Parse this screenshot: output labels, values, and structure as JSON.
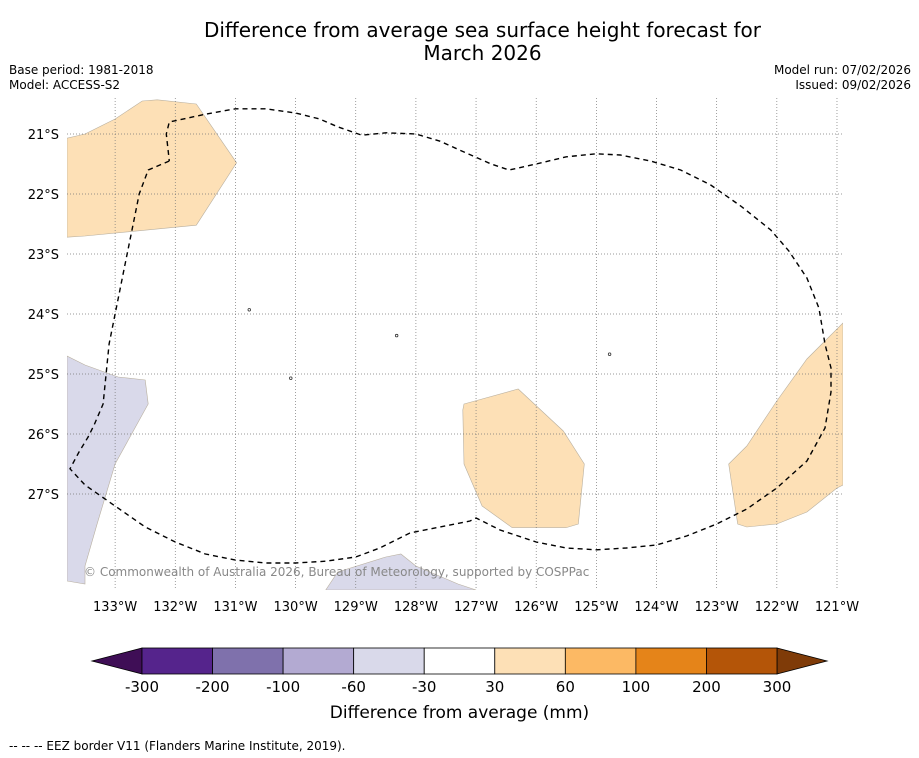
{
  "title_line1": "Difference from average sea surface height forecast for",
  "title_line2": "March 2026",
  "meta_left": {
    "base_period": "Base period: 1981-2018",
    "model": "Model: ACCESS-S2"
  },
  "meta_right": {
    "model_run": "Model run: 07/02/2026",
    "issued": "Issued: 09/02/2026"
  },
  "map": {
    "lon_range": [
      -133.8,
      -120.9
    ],
    "lat_range": [
      -28.6,
      -20.4
    ],
    "lon_ticks": [
      -133,
      -132,
      -131,
      -130,
      -129,
      -128,
      -127,
      -126,
      -125,
      -124,
      -123,
      -122,
      -121
    ],
    "lon_labels": [
      "133°W",
      "132°W",
      "131°W",
      "130°W",
      "129°W",
      "128°W",
      "127°W",
      "126°W",
      "125°W",
      "124°W",
      "123°W",
      "122°W",
      "121°W"
    ],
    "lat_ticks": [
      -21,
      -22,
      -23,
      -24,
      -25,
      -26,
      -27
    ],
    "lat_labels": [
      "21°S",
      "22°S",
      "23°S",
      "24°S",
      "25°S",
      "26°S",
      "27°S"
    ],
    "attribution": "© Commonwealth of Australia 2026, Bureau of Meteorology, supported by COSPPac",
    "regions": [
      {
        "category": "30 to 60",
        "color": "#fde0b6",
        "coords": [
          [
            -133.8,
            -21.07
          ],
          [
            -133.5,
            -21.0
          ],
          [
            -133.0,
            -20.75
          ],
          [
            -132.55,
            -20.45
          ],
          [
            -132.3,
            -20.43
          ],
          [
            -131.65,
            -20.5
          ],
          [
            -130.98,
            -21.48
          ],
          [
            -131.65,
            -22.52
          ],
          [
            -133.5,
            -22.7
          ],
          [
            -133.8,
            -22.72
          ]
        ]
      },
      {
        "category": "30 to 60",
        "color": "#fde0b6",
        "coords": [
          [
            -127.2,
            -25.5
          ],
          [
            -126.3,
            -25.25
          ],
          [
            -125.55,
            -25.95
          ],
          [
            -125.2,
            -26.5
          ],
          [
            -125.3,
            -27.5
          ],
          [
            -125.5,
            -27.56
          ],
          [
            -126.4,
            -27.56
          ],
          [
            -126.9,
            -27.2
          ],
          [
            -127.2,
            -26.5
          ],
          [
            -127.22,
            -25.6
          ]
        ]
      },
      {
        "category": "30 to 60",
        "color": "#fde0b6",
        "coords": [
          [
            -120.9,
            -24.15
          ],
          [
            -121.5,
            -24.75
          ],
          [
            -122.0,
            -25.45
          ],
          [
            -122.5,
            -26.2
          ],
          [
            -122.8,
            -26.5
          ],
          [
            -122.65,
            -27.5
          ],
          [
            -122.5,
            -27.55
          ],
          [
            -122.0,
            -27.5
          ],
          [
            -121.5,
            -27.3
          ],
          [
            -121.0,
            -26.9
          ],
          [
            -120.9,
            -26.85
          ]
        ]
      },
      {
        "category": "-60 to -30",
        "color": "#d9d9ea",
        "coords": [
          [
            -133.8,
            -24.7
          ],
          [
            -133.5,
            -24.85
          ],
          [
            -132.95,
            -25.05
          ],
          [
            -132.5,
            -25.1
          ],
          [
            -132.45,
            -25.5
          ],
          [
            -133.0,
            -26.5
          ],
          [
            -133.3,
            -27.5
          ],
          [
            -133.5,
            -28.2
          ],
          [
            -133.5,
            -28.5
          ],
          [
            -133.8,
            -28.45
          ]
        ]
      },
      {
        "category": "-60 to -30",
        "color": "#d9d9ea",
        "coords": [
          [
            -129.5,
            -28.6
          ],
          [
            -129.3,
            -28.3
          ],
          [
            -128.5,
            -28.05
          ],
          [
            -128.25,
            -28.0
          ],
          [
            -128.0,
            -28.2
          ],
          [
            -127.3,
            -28.5
          ],
          [
            -127.0,
            -28.6
          ]
        ]
      }
    ],
    "eez_border": [
      [
        -132.1,
        -21.45
      ],
      [
        -132.45,
        -21.6
      ],
      [
        -132.6,
        -22.0
      ],
      [
        -132.7,
        -22.5
      ],
      [
        -132.85,
        -23.25
      ],
      [
        -133.0,
        -24.0
      ],
      [
        -133.1,
        -24.5
      ],
      [
        -133.15,
        -25.0
      ],
      [
        -133.2,
        -25.5
      ],
      [
        -133.35,
        -25.85
      ],
      [
        -133.45,
        -26.05
      ],
      [
        -133.6,
        -26.3
      ],
      [
        -133.75,
        -26.58
      ],
      [
        -133.5,
        -26.85
      ],
      [
        -133.0,
        -27.2
      ],
      [
        -132.5,
        -27.55
      ],
      [
        -132.0,
        -27.8
      ],
      [
        -131.5,
        -28.0
      ],
      [
        -131.0,
        -28.1
      ],
      [
        -130.5,
        -28.15
      ],
      [
        -130.0,
        -28.15
      ],
      [
        -129.5,
        -28.12
      ],
      [
        -129.0,
        -28.05
      ],
      [
        -128.6,
        -27.9
      ],
      [
        -128.3,
        -27.75
      ],
      [
        -128.1,
        -27.65
      ],
      [
        -127.6,
        -27.55
      ],
      [
        -127.1,
        -27.45
      ],
      [
        -127.0,
        -27.4
      ],
      [
        -126.6,
        -27.6
      ],
      [
        -126.0,
        -27.8
      ],
      [
        -125.5,
        -27.9
      ],
      [
        -125.0,
        -27.93
      ],
      [
        -124.5,
        -27.9
      ],
      [
        -124.0,
        -27.85
      ],
      [
        -123.5,
        -27.7
      ],
      [
        -123.0,
        -27.5
      ],
      [
        -122.5,
        -27.25
      ],
      [
        -122.0,
        -26.9
      ],
      [
        -121.5,
        -26.45
      ],
      [
        -121.2,
        -25.9
      ],
      [
        -121.1,
        -25.3
      ],
      [
        -121.1,
        -24.9
      ],
      [
        -121.2,
        -24.5
      ],
      [
        -121.3,
        -23.9
      ],
      [
        -121.5,
        -23.4
      ],
      [
        -121.8,
        -22.95
      ],
      [
        -122.1,
        -22.6
      ],
      [
        -122.6,
        -22.2
      ],
      [
        -123.1,
        -21.85
      ],
      [
        -123.6,
        -21.6
      ],
      [
        -124.1,
        -21.45
      ],
      [
        -124.6,
        -21.35
      ],
      [
        -125.0,
        -21.33
      ],
      [
        -125.5,
        -21.38
      ],
      [
        -126.0,
        -21.5
      ],
      [
        -126.45,
        -21.6
      ],
      [
        -126.75,
        -21.5
      ],
      [
        -127.2,
        -21.3
      ],
      [
        -127.6,
        -21.12
      ],
      [
        -128.0,
        -21.0
      ],
      [
        -128.5,
        -20.98
      ],
      [
        -128.9,
        -21.02
      ],
      [
        -129.3,
        -20.88
      ],
      [
        -129.6,
        -20.75
      ],
      [
        -130.0,
        -20.65
      ],
      [
        -130.5,
        -20.58
      ],
      [
        -131.0,
        -20.58
      ],
      [
        -131.5,
        -20.67
      ],
      [
        -132.1,
        -20.8
      ],
      [
        -132.15,
        -21.0
      ],
      [
        -132.1,
        -21.45
      ]
    ]
  },
  "colorbar": {
    "ticks": [
      "-300",
      "-200",
      "-100",
      "-60",
      "-30",
      "30",
      "60",
      "100",
      "200",
      "300"
    ],
    "colors": [
      "#55248c",
      "#7f71ac",
      "#b3aad2",
      "#d9d9ea",
      "#ffffff",
      "#fde0b6",
      "#fcb964",
      "#e58419",
      "#b45508"
    ],
    "under_color": "#3f0e56",
    "over_color": "#7f3b08",
    "label": "Difference from average (mm)"
  },
  "footnote": "--  --  -- EEZ border V11 (Flanders Marine Institute, 2019)."
}
